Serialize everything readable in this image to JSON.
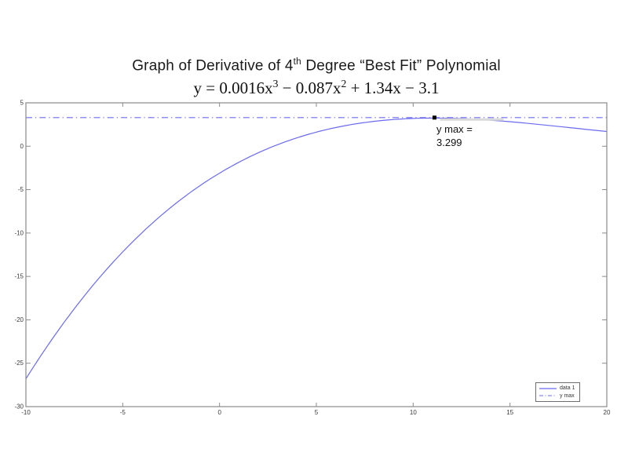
{
  "title": {
    "prefix": "Graph of Derivative of 4",
    "sup": "th",
    "suffix": " Degree “Best Fit” Polynomial"
  },
  "equation": {
    "p1": "y = 0.0016x",
    "s1": "3",
    "p2": " − 0.087x",
    "s2": "2",
    "p3": " + 1.34x − 3.1"
  },
  "annotation": {
    "line1": "y max =",
    "line2": "3.299"
  },
  "chart_data": {
    "type": "line",
    "title": "Graph of Derivative of 4th Degree “Best Fit” Polynomial",
    "subtitle_equation": "y = 0.0016x³ − 0.087x² + 1.34x − 3.1",
    "coefficients": {
      "a3": 0.0016,
      "a2": -0.087,
      "a1": 1.34,
      "a0": -3.1
    },
    "x_range": [
      -10,
      20
    ],
    "y_range": [
      -30,
      5
    ],
    "x_ticks": [
      -10,
      -5,
      0,
      5,
      10,
      15,
      20
    ],
    "y_ticks": [
      5,
      0,
      -5,
      -10,
      -15,
      -20,
      -25,
      -30
    ],
    "y_max_value": 3.299,
    "max_point": {
      "x": 11.1,
      "y": 3.299
    },
    "xlabel": "",
    "ylabel": "",
    "grid": false,
    "legend_position": "bottom-right",
    "series": [
      {
        "name": "data 1",
        "style": "solid",
        "color": "#6b6bf0"
      },
      {
        "name": "y max",
        "style": "dash-dot",
        "color": "#6b6bf0"
      }
    ],
    "colors": {
      "line": "#6b6bf0",
      "frame": "#8a8a8a",
      "tick_label": "#3a3a3a",
      "marker": "#000000",
      "annotation_edge": "#d9d9d9"
    }
  }
}
